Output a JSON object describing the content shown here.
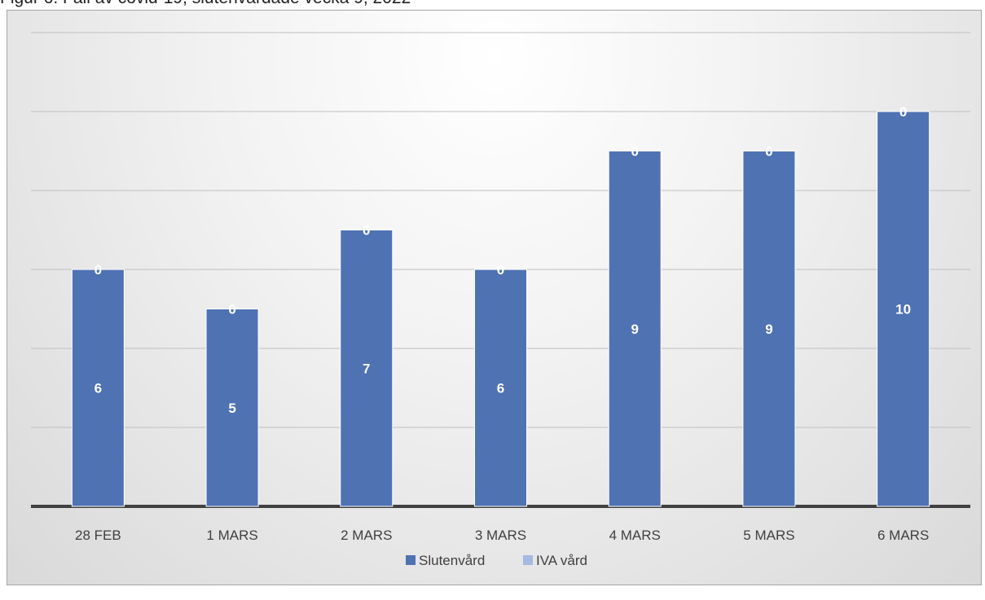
{
  "figure_title": "Figur 6. Fall av covid-19, slutenvårdade vecka 9, 2022",
  "colors": {
    "slutenvard": "#4f72b3",
    "iva": "#a7b9e0",
    "grid": "#bfbfbf",
    "axis": "#404040"
  },
  "chart_data": {
    "type": "bar",
    "stacked": true,
    "title": "",
    "xlabel": "",
    "ylabel": "",
    "ylim": [
      0,
      12
    ],
    "grid": true,
    "legend_position": "bottom",
    "categories": [
      "28 FEB",
      "1 MARS",
      "2 MARS",
      "3 MARS",
      "4 MARS",
      "5 MARS",
      "6 MARS"
    ],
    "series": [
      {
        "name": "Slutenvård",
        "values": [
          6,
          5,
          7,
          6,
          9,
          9,
          10
        ]
      },
      {
        "name": "IVA vård",
        "values": [
          0,
          0,
          0,
          0,
          0,
          0,
          0
        ]
      }
    ]
  }
}
